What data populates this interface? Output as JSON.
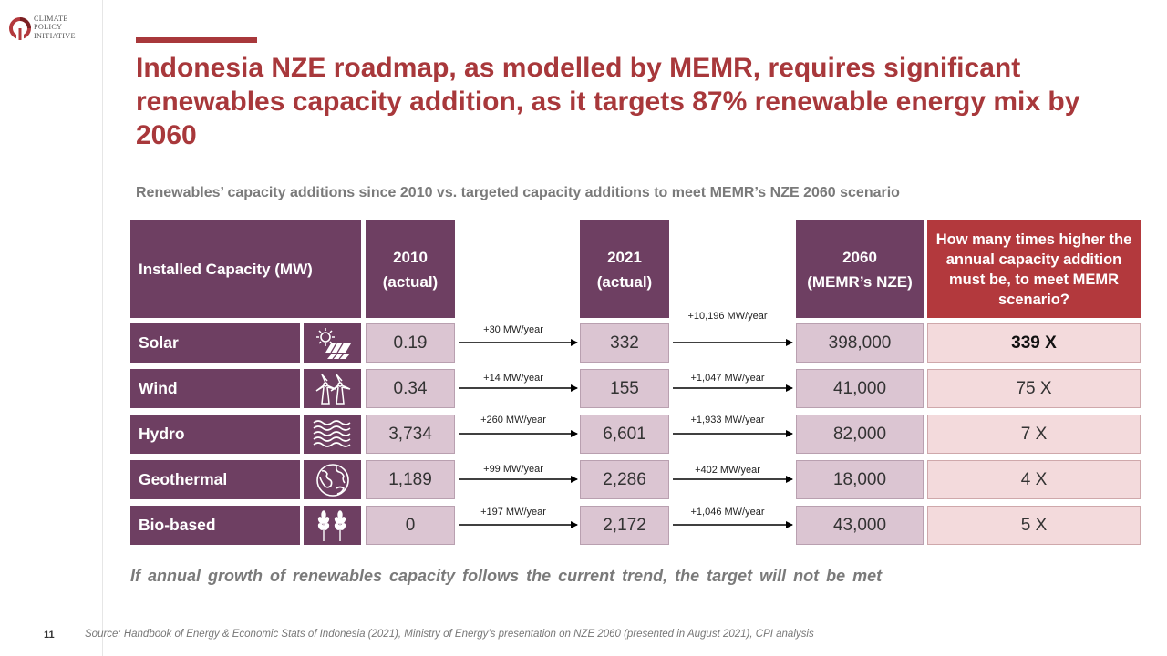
{
  "logo": {
    "line1": "CLIMATE",
    "line2": "POLICY",
    "line3": "INITIATIVE"
  },
  "title": "Indonesia NZE roadmap, as modelled by MEMR, requires significant renewables capacity addition, as it targets 87% renewable energy mix by 2060",
  "subtitle": "Renewables’ capacity additions since 2010 vs. targeted capacity additions to meet MEMR’s NZE 2060 scenario",
  "table": {
    "headers": {
      "capacity": "Installed Capacity (MW)",
      "y2010_line1": "2010",
      "y2010_line2": "(actual)",
      "y2021_line1": "2021",
      "y2021_line2": "(actual)",
      "y2060_line1": "2060",
      "y2060_line2": "(MEMR’s NZE)",
      "ratio": "How many times higher the annual capacity addition must be, to meet MEMR scenario?"
    },
    "rows": [
      {
        "label": "Solar",
        "icon": "solar-panel-icon",
        "v2010": "0.19",
        "v2021": "332",
        "v2060": "398,000",
        "rate1": "+30 MW/year",
        "rate2": "+10,196 MW/year",
        "ratio": "339 X"
      },
      {
        "label": "Wind",
        "icon": "wind-turbine-icon",
        "v2010": "0.34",
        "v2021": "155",
        "v2060": "41,000",
        "rate1": "+14 MW/year",
        "rate2": "+1,047 MW/year",
        "ratio": "75 X"
      },
      {
        "label": "Hydro",
        "icon": "water-waves-icon",
        "v2010": "3,734",
        "v2021": "6,601",
        "v2060": "82,000",
        "rate1": "+260 MW/year",
        "rate2": "+1,933 MW/year",
        "ratio": "7 X"
      },
      {
        "label": "Geothermal",
        "icon": "globe-icon",
        "v2010": "1,189",
        "v2021": "2,286",
        "v2060": "18,000",
        "rate1": "+99 MW/year",
        "rate2": "+402 MW/year",
        "ratio": "4 X"
      },
      {
        "label": "Bio-based",
        "icon": "wheat-icon",
        "v2010": "0",
        "v2021": "2,172",
        "v2060": "43,000",
        "rate1": "+197 MW/year",
        "rate2": "+1,046 MW/year",
        "ratio": "5 X"
      }
    ]
  },
  "note": "If annual growth of renewables capacity follows the current trend, the target will not be met",
  "page_number": "11",
  "source": "Source: Handbook of Energy & Economic Stats of Indonesia (2021), Ministry of Energy’s presentation on NZE 2060 (presented in August 2021), CPI analysis",
  "colors": {
    "brand_red": "#a8383b",
    "purple": "#6e3f62",
    "cell": "#dbc5d2",
    "ratio_cell": "#f3dadc"
  }
}
